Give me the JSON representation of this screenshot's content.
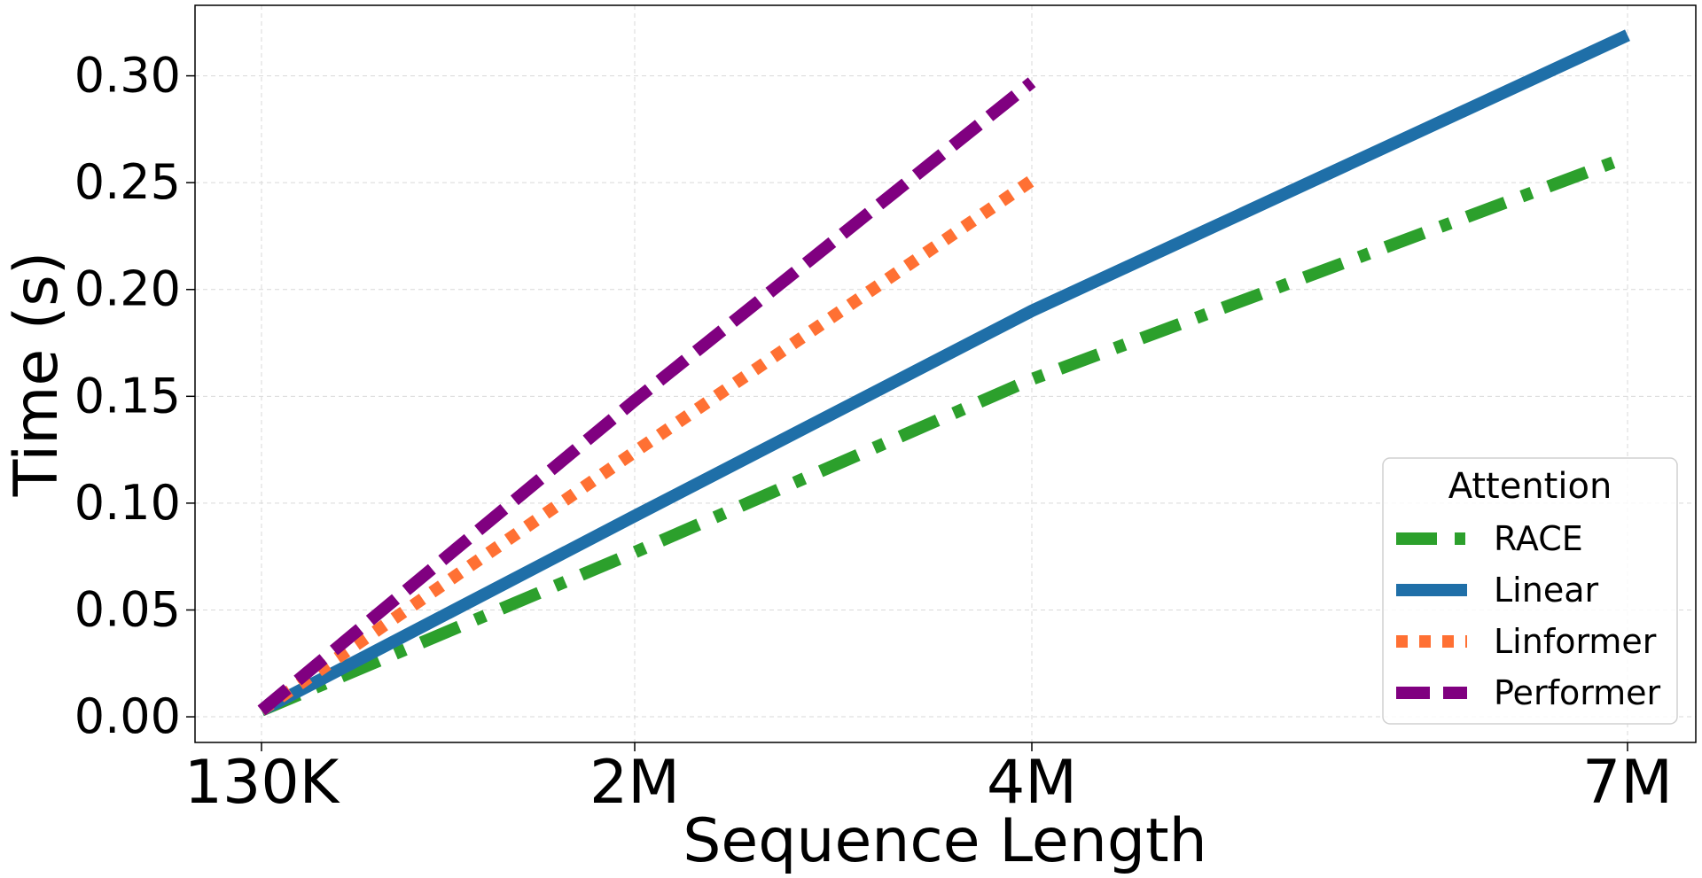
{
  "chart_data": {
    "type": "line",
    "title": "",
    "xlabel": "Sequence Length",
    "ylabel": "Time (s)",
    "x": [
      "130K",
      "2M",
      "4M",
      "7M"
    ],
    "x_values": [
      130000,
      2000000,
      4000000,
      7000000
    ],
    "ylim": [
      -0.012,
      0.333
    ],
    "yticks": [
      "0.00",
      "0.05",
      "0.10",
      "0.15",
      "0.20",
      "0.25",
      "0.30"
    ],
    "ytick_values": [
      0,
      0.05,
      0.1,
      0.15,
      0.2,
      0.25,
      0.3
    ],
    "grid": true,
    "legend": {
      "title": "Attention",
      "placement": "bottom-right"
    },
    "series": [
      {
        "name": "RACE",
        "color": "#2ca02c",
        "style": "dashdot",
        "values": [
          0.003,
          0.077,
          0.158,
          0.262
        ]
      },
      {
        "name": "Linear",
        "color": "#1f6fa8",
        "style": "solid",
        "values": [
          0.003,
          0.094,
          0.19,
          0.319
        ]
      },
      {
        "name": "Linformer",
        "color": "#ff7033",
        "style": "dotted",
        "values": [
          0.003,
          0.124,
          0.251,
          null
        ]
      },
      {
        "name": "Performer",
        "color": "#800080",
        "style": "dashed",
        "values": [
          0.003,
          0.148,
          0.297,
          null
        ]
      }
    ]
  }
}
